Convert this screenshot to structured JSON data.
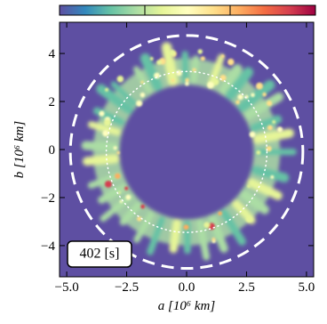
{
  "chart_data": {
    "type": "heatmap",
    "xlabel": "a [10⁶ km]",
    "ylabel": "b [10⁶ km]",
    "annotation": "402 [s]",
    "xlim": [
      -5.3,
      5.3
    ],
    "ylim": [
      -5.3,
      5.3
    ],
    "xticks": [
      {
        "value": -5,
        "label": "−5.0"
      },
      {
        "value": -2.5,
        "label": "−2.5"
      },
      {
        "value": 0,
        "label": "0.0"
      },
      2.5,
      {
        "value": 5,
        "label": "5.0"
      }
    ],
    "yticks": [
      {
        "value": -4,
        "label": "−4"
      },
      {
        "value": -2,
        "label": "−2"
      },
      0,
      2,
      4
    ],
    "colormap": [
      "#5e4fa2",
      "#3288bd",
      "#66c2a5",
      "#abdda4",
      "#e6f598",
      "#ffffbf",
      "#fee08b",
      "#fdae61",
      "#f46d43",
      "#d53e4f",
      "#9e0142"
    ]
  }
}
